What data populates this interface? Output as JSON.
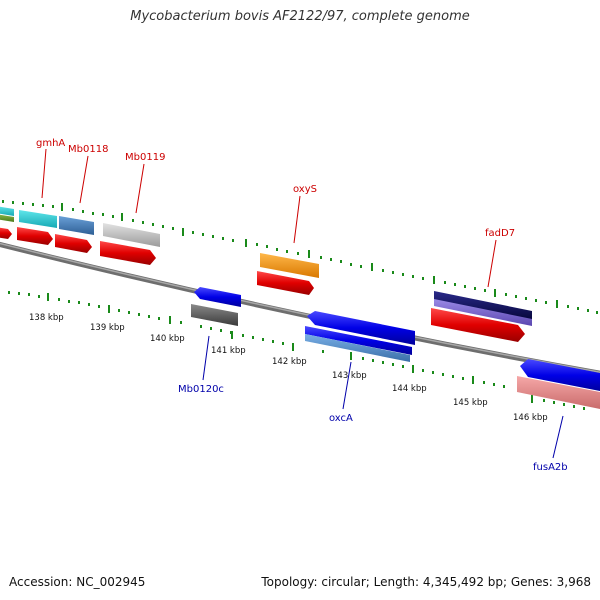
{
  "title": "Mycobacterium bovis AF2122/97, complete genome",
  "footer": {
    "accession": "Accession: NC_002945",
    "topology": "Topology: circular; Length: 4,345,492 bp; Genes: 3,968"
  },
  "colors": {
    "backbone": "#808080",
    "tick": "#1a8a1a",
    "forward_label": "#cc0000",
    "reverse_label": "#0000aa",
    "scale_label": "#111111"
  },
  "scale_labels": [
    "138 kbp",
    "139 kbp",
    "140 kbp",
    "141 kbp",
    "142 kbp",
    "143 kbp",
    "144 kbp",
    "145 kbp",
    "146 kbp"
  ],
  "gene_labels_forward": [
    "gmhA",
    "Mb0118",
    "Mb0119",
    "oxyS",
    "fadD7"
  ],
  "gene_labels_reverse": [
    "Mb0120c",
    "oxcA",
    "fusA2b"
  ]
}
